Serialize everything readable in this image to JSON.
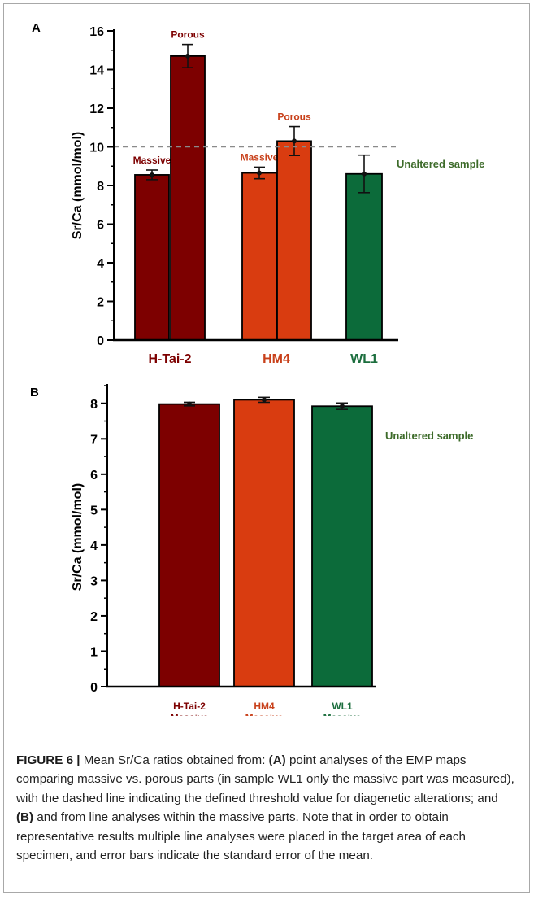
{
  "chart_data": [
    {
      "type": "bar",
      "panel_label": "A",
      "ylabel": "Sr/Ca (mmol/mol)",
      "ylim": [
        0,
        16
      ],
      "yticks": [
        0,
        2,
        4,
        6,
        8,
        10,
        12,
        14,
        16
      ],
      "groups": [
        "H-Tai-2",
        "HM4",
        "WL1"
      ],
      "bars": [
        {
          "group": "H-Tai-2",
          "label": "Massive",
          "value": 8.55,
          "error": 0.25,
          "color": "#7d0000"
        },
        {
          "group": "H-Tai-2",
          "label": "Porous",
          "value": 14.7,
          "error": 0.6,
          "color": "#7d0000"
        },
        {
          "group": "HM4",
          "label": "Massive",
          "value": 8.65,
          "error": 0.3,
          "color": "#d93c10"
        },
        {
          "group": "HM4",
          "label": "Porous",
          "value": 10.3,
          "error": 0.75,
          "color": "#d93c10"
        },
        {
          "group": "WL1",
          "label": "",
          "value": 8.6,
          "error": 0.97,
          "color": "#0c6b3a"
        }
      ],
      "threshold": {
        "value": 10,
        "style": "dashed"
      },
      "annotation": "Unaltered sample",
      "group_label_colors": [
        "#7d0000",
        "#c8401a",
        "#1c6e3e"
      ],
      "annotation_color": "#3d6b2a"
    },
    {
      "type": "bar",
      "panel_label": "B",
      "ylabel": "Sr/Ca (mmol/mol)",
      "ylim": [
        0,
        8.5
      ],
      "yticks": [
        0,
        1,
        2,
        3,
        4,
        5,
        6,
        7,
        8
      ],
      "categories": [
        [
          "H-Tai-2",
          "Massive"
        ],
        [
          "HM4",
          "Massive"
        ],
        [
          "WL1",
          "Massive"
        ]
      ],
      "values": [
        7.98,
        8.1,
        7.92
      ],
      "errors": [
        0.05,
        0.07,
        0.09
      ],
      "colors": [
        "#7d0000",
        "#d93c10",
        "#0c6b3a"
      ],
      "label_colors": [
        "#7d0000",
        "#c8401a",
        "#1c6e3e"
      ],
      "annotation": "Unaltered sample",
      "annotation_color": "#3d6b2a"
    }
  ],
  "caption": {
    "label": "FIGURE 6 |",
    "text_1": " Mean Sr/Ca ratios obtained from: ",
    "bold_a": "(A)",
    "text_2": " point analyses of the EMP maps comparing massive vs. porous parts (in sample WL1 only the massive part was measured), with the dashed line indicating the defined threshold value for diagenetic alterations; and ",
    "bold_b": "(B)",
    "text_3": " and from line analyses within the massive parts. Note that in order to obtain representative results multiple line analyses were placed in the target area of each specimen, and error bars indicate the standard error of the mean."
  }
}
